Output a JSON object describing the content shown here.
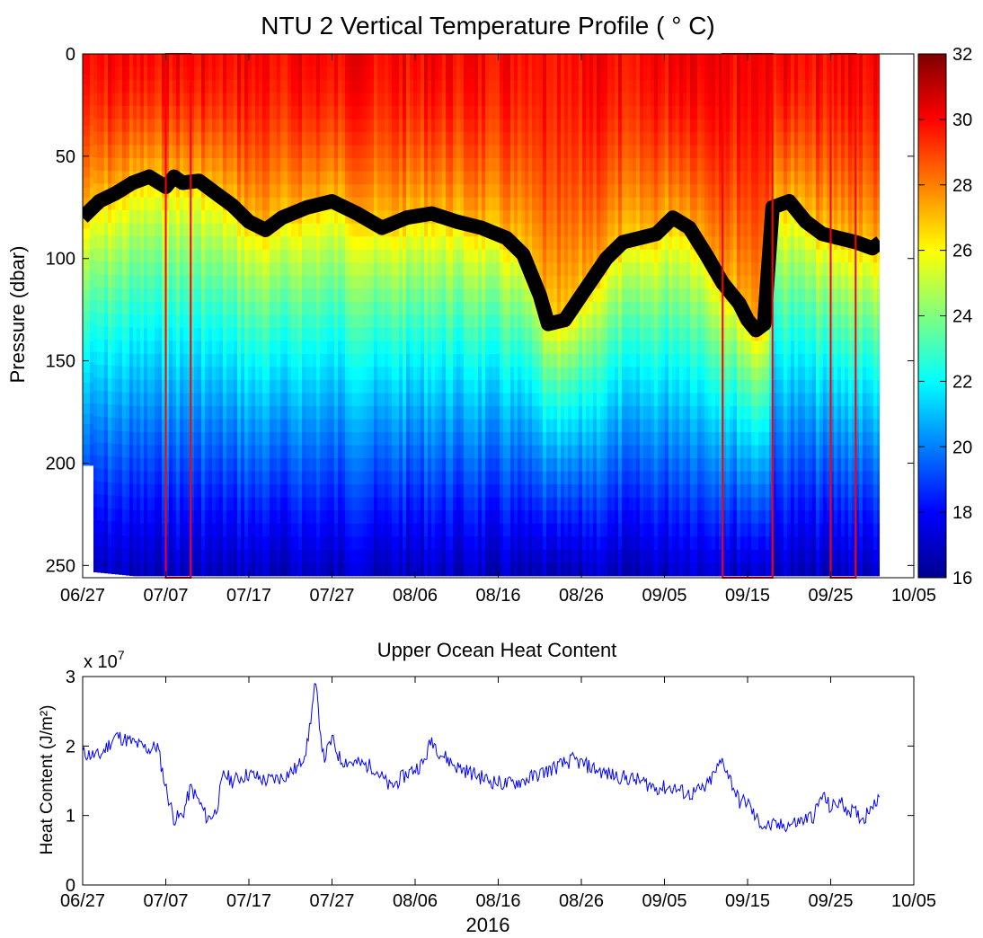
{
  "chart_data": [
    {
      "type": "heatmap",
      "title": "NTU 2 Vertical Temperature Profile ( ° C)",
      "ylabel": "Pressure (dbar)",
      "xlabel": "",
      "x_tick_labels": [
        "06/27",
        "07/07",
        "07/17",
        "07/27",
        "08/06",
        "08/16",
        "08/26",
        "09/05",
        "09/15",
        "09/25",
        "10/05"
      ],
      "x_range": [
        "06/27",
        "10/05"
      ],
      "y_ticks": [
        0,
        50,
        100,
        150,
        200,
        250
      ],
      "y_range": [
        0,
        256
      ],
      "y_reversed": true,
      "colorbar": {
        "ticks": [
          16,
          18,
          20,
          22,
          24,
          26,
          28,
          30,
          32
        ],
        "range": [
          16,
          32
        ],
        "colormap": "jet"
      },
      "highlight_boxes": [
        {
          "start": "07/07",
          "end": "07/10"
        },
        {
          "start": "09/12",
          "end": "09/18"
        },
        {
          "start": "09/25",
          "end": "09/28"
        }
      ],
      "mixed_layer_depth": {
        "color": "#000000",
        "dates": [
          "06/27",
          "06/29",
          "07/01",
          "07/03",
          "07/05",
          "07/07",
          "07/08",
          "07/09",
          "07/11",
          "07/13",
          "07/15",
          "07/17",
          "07/19",
          "07/21",
          "07/24",
          "07/27",
          "07/30",
          "08/02",
          "08/05",
          "08/08",
          "08/11",
          "08/14",
          "08/17",
          "08/19",
          "08/21",
          "08/22",
          "08/24",
          "08/26",
          "08/29",
          "08/31",
          "09/02",
          "09/04",
          "09/06",
          "09/08",
          "09/10",
          "09/12",
          "09/14",
          "09/15",
          "09/16",
          "09/17",
          "09/18",
          "09/20",
          "09/22",
          "09/24",
          "09/26",
          "09/28",
          "09/30",
          "10/01"
        ],
        "pressure": [
          80,
          72,
          68,
          63,
          60,
          65,
          60,
          63,
          62,
          68,
          74,
          82,
          86,
          80,
          75,
          72,
          78,
          85,
          80,
          78,
          82,
          85,
          90,
          98,
          118,
          132,
          130,
          118,
          100,
          92,
          90,
          88,
          80,
          85,
          98,
          112,
          122,
          130,
          135,
          132,
          75,
          72,
          82,
          88,
          90,
          92,
          95,
          92
        ]
      },
      "profile_depth": {
        "dates": [
          "06/27",
          "06/28",
          "06/28.01",
          "07/03",
          "10/01"
        ],
        "pressure": [
          201,
          201,
          253,
          255,
          255
        ]
      },
      "temperature_model": {
        "surface_c": 30.0,
        "deep_c": 17.0,
        "deep_pressure": 255,
        "mixed_layer_c": 27.0
      }
    },
    {
      "type": "line",
      "title": "Upper Ocean Heat Content",
      "ylabel": "Heat Content (J/m²)",
      "xlabel": "2016",
      "exponent_label": "x 10",
      "exponent": "7",
      "y_ticks": [
        0,
        1,
        2,
        3
      ],
      "ylim": [
        0,
        3
      ],
      "x_tick_labels": [
        "06/27",
        "07/07",
        "07/17",
        "07/27",
        "08/06",
        "08/16",
        "08/26",
        "09/05",
        "09/15",
        "09/25",
        "10/05"
      ],
      "x_range": [
        "06/27",
        "10/05"
      ],
      "series": [
        {
          "color": "#0000ff",
          "dates": [
            "06/27",
            "06/29",
            "07/01",
            "07/03",
            "07/05",
            "07/06",
            "07/07",
            "07/08",
            "07/09",
            "07/10",
            "07/11",
            "07/12",
            "07/13",
            "07/14",
            "07/15",
            "07/17",
            "07/19",
            "07/21",
            "07/23",
            "07/24",
            "07/25",
            "07/26",
            "07/27",
            "07/28",
            "07/30",
            "08/01",
            "08/03",
            "08/05",
            "08/07",
            "08/08",
            "08/09",
            "08/11",
            "08/13",
            "08/15",
            "08/17",
            "08/19",
            "08/21",
            "08/23",
            "08/25",
            "08/27",
            "08/29",
            "08/31",
            "09/02",
            "09/04",
            "09/06",
            "09/08",
            "09/10",
            "09/12",
            "09/13",
            "09/14",
            "09/15",
            "09/16",
            "09/17",
            "09/19",
            "09/21",
            "09/23",
            "09/24",
            "09/25",
            "09/26",
            "09/27",
            "09/29",
            "09/30",
            "10/01"
          ],
          "values": [
            1.9,
            1.85,
            2.15,
            2.05,
            1.95,
            2.0,
            1.4,
            0.95,
            1.0,
            1.4,
            1.2,
            0.95,
            1.05,
            1.6,
            1.5,
            1.6,
            1.5,
            1.55,
            1.7,
            2.0,
            2.9,
            1.8,
            2.1,
            1.8,
            1.75,
            1.7,
            1.4,
            1.6,
            1.75,
            2.1,
            1.9,
            1.7,
            1.6,
            1.5,
            1.45,
            1.5,
            1.6,
            1.7,
            1.8,
            1.7,
            1.6,
            1.55,
            1.5,
            1.4,
            1.4,
            1.3,
            1.4,
            1.8,
            1.5,
            1.2,
            1.2,
            0.95,
            0.85,
            0.85,
            0.9,
            1.0,
            1.3,
            1.1,
            1.2,
            1.1,
            0.95,
            1.2,
            1.2
          ]
        }
      ]
    }
  ]
}
